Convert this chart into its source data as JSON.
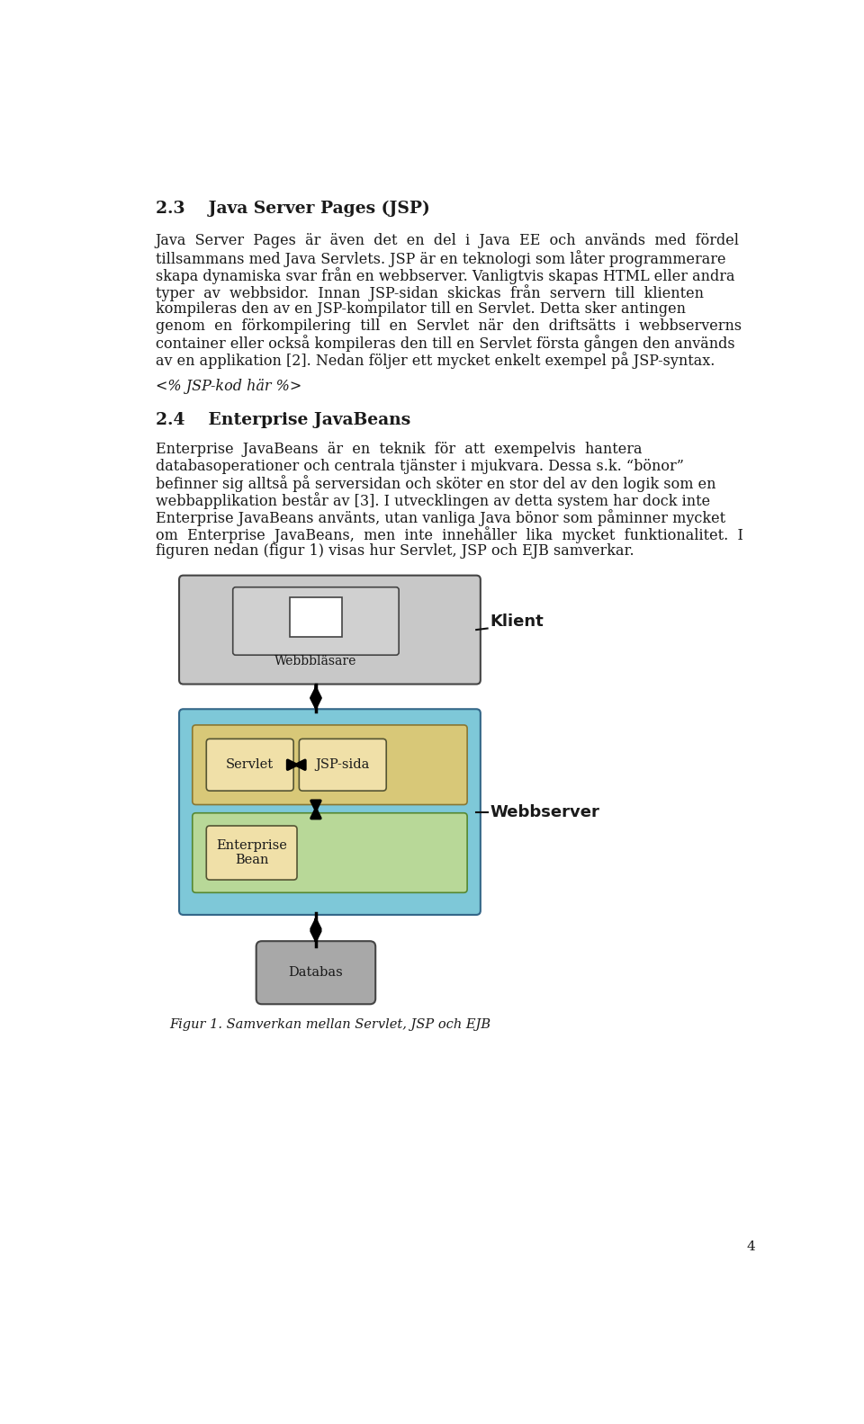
{
  "title_section": "2.3    Java Server Pages (JSP)",
  "body_text_1_lines": [
    "Java  Server  Pages  är  även  det  en  del  i  Java  EE  och  används  med  fördel",
    "tillsammans med Java Servlets. JSP är en teknologi som låter programmerare",
    "skapa dynamiska svar från en webbserver. Vanligtvis skapas HTML eller andra",
    "typer  av  webbsidor.  Innan  JSP-sidan  skickas  från  servern  till  klienten",
    "kompileras den av en JSP-kompilator till en Servlet. Detta sker antingen",
    "genom  en  förkompilering  till  en  Servlet  när  den  driftsätts  i  webbserverns",
    "container eller också kompileras den till en Servlet första gången den används",
    "av en applikation [2]. Nedan följer ett mycket enkelt exempel på JSP-syntax."
  ],
  "code_text": "<% JSP-kod här %>",
  "section_24": "2.4    Enterprise JavaBeans",
  "body_text_2_lines": [
    "Enterprise  JavaBeans  är  en  teknik  för  att  exempelvis  hantera",
    "databasoperationer och centrala tjänster i mjukvara. Dessa s.k. “bönor”",
    "befinner sig alltså på serversidan och sköter en stor del av den logik som en",
    "webbapplikation består av [3]. I utvecklingen av detta system har dock inte",
    "Enterprise JavaBeans använts, utan vanliga Java bönor som påminner mycket",
    "om  Enterprise  JavaBeans,  men  inte  innehåller  lika  mycket  funktionalitet.  I",
    "figuren nedan (figur 1) visas hur Servlet, JSP och EJB samverkar."
  ],
  "fig_caption": "Figur 1. Samverkan mellan Servlet, JSP och EJB",
  "page_number": "4",
  "bg_color": "#ffffff",
  "text_color": "#1a1a1a",
  "diagram": {
    "klient_label": "Klient",
    "webbserver_label": "Webbserver",
    "webblasare_label": "Webbbläsare",
    "servlet_label": "Servlet",
    "jsp_label": "JSP-sida",
    "enterprise_label": "Enterprise\nBean",
    "databas_label": "Databas",
    "client_box_color": "#c8c8c8",
    "webserver_box_color": "#7ec8d8",
    "yellow_row_color": "#d8c878",
    "green_row_color": "#b8d898",
    "inner_box_color": "#f0e0a8",
    "databas_box_color": "#a8a8a8",
    "webblasare_box_color": "#d0d0d0"
  }
}
